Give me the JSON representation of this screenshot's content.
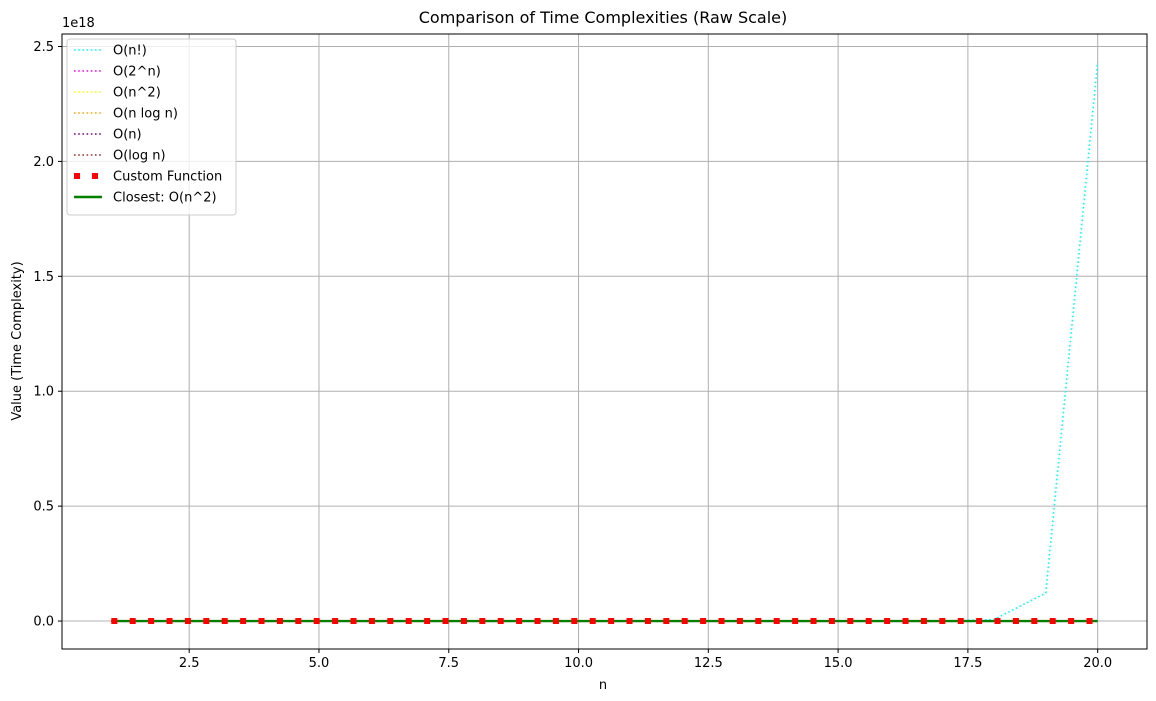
{
  "chart_data": {
    "type": "line",
    "title": "Comparison of Time Complexities (Raw Scale)",
    "xlabel": "n",
    "ylabel": "Value (Time Complexity)",
    "y_offset_label": "1e18",
    "xlim": [
      0.05,
      20.95
    ],
    "ylim": [
      -0.1216,
      2.5543
    ],
    "xticks": [
      2.5,
      5.0,
      7.5,
      10.0,
      12.5,
      15.0,
      17.5,
      20.0
    ],
    "xtick_labels": [
      "2.5",
      "5.0",
      "7.5",
      "10.0",
      "12.5",
      "15.0",
      "17.5",
      "20.0"
    ],
    "yticks": [
      0.0,
      0.5,
      1.0,
      1.5,
      2.0,
      2.5
    ],
    "ytick_labels": [
      "0.0",
      "0.5",
      "1.0",
      "1.5",
      "2.0",
      "2.5"
    ],
    "y_units": "1e18",
    "grid": true,
    "legend_position": "upper-left",
    "series": [
      {
        "name": "O(n!)",
        "color": "#00ffff",
        "style": "dotted",
        "x": [
          1,
          2,
          3,
          4,
          5,
          6,
          7,
          8,
          9,
          10,
          11,
          12,
          13,
          14,
          15,
          16,
          17,
          18,
          19,
          20
        ],
        "y": [
          0,
          0,
          0,
          0,
          0,
          0,
          0,
          0,
          0,
          0,
          0,
          0,
          0,
          0,
          0,
          0,
          0,
          0.0064,
          0.1216,
          2.4329
        ]
      },
      {
        "name": "O(2^n)",
        "color": "#ff00ff",
        "style": "dotted",
        "x": [
          1,
          20
        ],
        "y": [
          0,
          0
        ]
      },
      {
        "name": "O(n^2)",
        "color": "#ffff00",
        "style": "dotted",
        "x": [
          1,
          20
        ],
        "y": [
          0,
          0
        ]
      },
      {
        "name": "O(n log n)",
        "color": "#ffa500",
        "style": "dotted",
        "x": [
          1,
          20
        ],
        "y": [
          0,
          0
        ]
      },
      {
        "name": "O(n)",
        "color": "#800080",
        "style": "dotted",
        "x": [
          1,
          20
        ],
        "y": [
          0,
          0
        ]
      },
      {
        "name": "O(log n)",
        "color": "#a52a2a",
        "style": "dotted",
        "x": [
          1,
          20
        ],
        "y": [
          0,
          0
        ]
      },
      {
        "name": "Custom Function",
        "color": "#ff0000",
        "style": "thick-dotted",
        "x": [
          1,
          20
        ],
        "y": [
          0,
          0
        ]
      },
      {
        "name": "Closest: O(n^2)",
        "color": "#008000",
        "style": "solid",
        "x": [
          1,
          20
        ],
        "y": [
          0,
          0
        ]
      }
    ]
  }
}
